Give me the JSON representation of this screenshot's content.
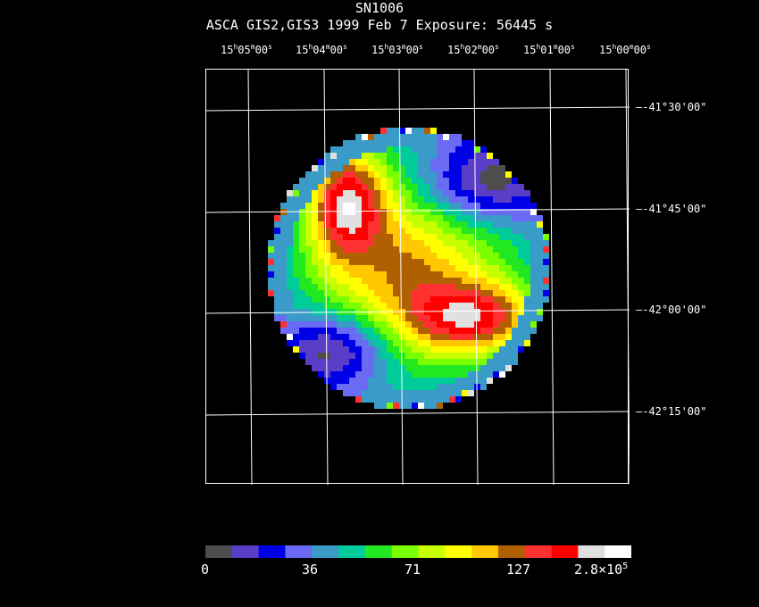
{
  "header": {
    "object": "SN1006",
    "line2": "ASCA GIS2,GIS3    1999 Feb  7    Exposure: 56445 s"
  },
  "ra_ticks": [
    {
      "h": "15",
      "m": "05",
      "s": "00"
    },
    {
      "h": "15",
      "m": "04",
      "s": "00"
    },
    {
      "h": "15",
      "m": "03",
      "s": "00"
    },
    {
      "h": "15",
      "m": "02",
      "s": "00"
    },
    {
      "h": "15",
      "m": "01",
      "s": "00"
    },
    {
      "h": "15",
      "m": "00",
      "s": "00"
    }
  ],
  "dec_ticks": [
    "-41°30'00\"",
    "-41°45'00\"",
    "-42°00'00\"",
    "-42°15'00\""
  ],
  "colorbar": {
    "colors": [
      "#4d4d4d",
      "#5a3ec8",
      "#0000e6",
      "#6a6af5",
      "#3a9ac8",
      "#00cc99",
      "#22e822",
      "#7aff00",
      "#c8ff00",
      "#ffff00",
      "#ffc800",
      "#b06000",
      "#ff3030",
      "#ff0000",
      "#e0e0e0",
      "#ffffff"
    ],
    "labels": [
      "0",
      "36",
      "71",
      "127"
    ],
    "max_label": "2.8×10",
    "max_exp": "5"
  }
}
